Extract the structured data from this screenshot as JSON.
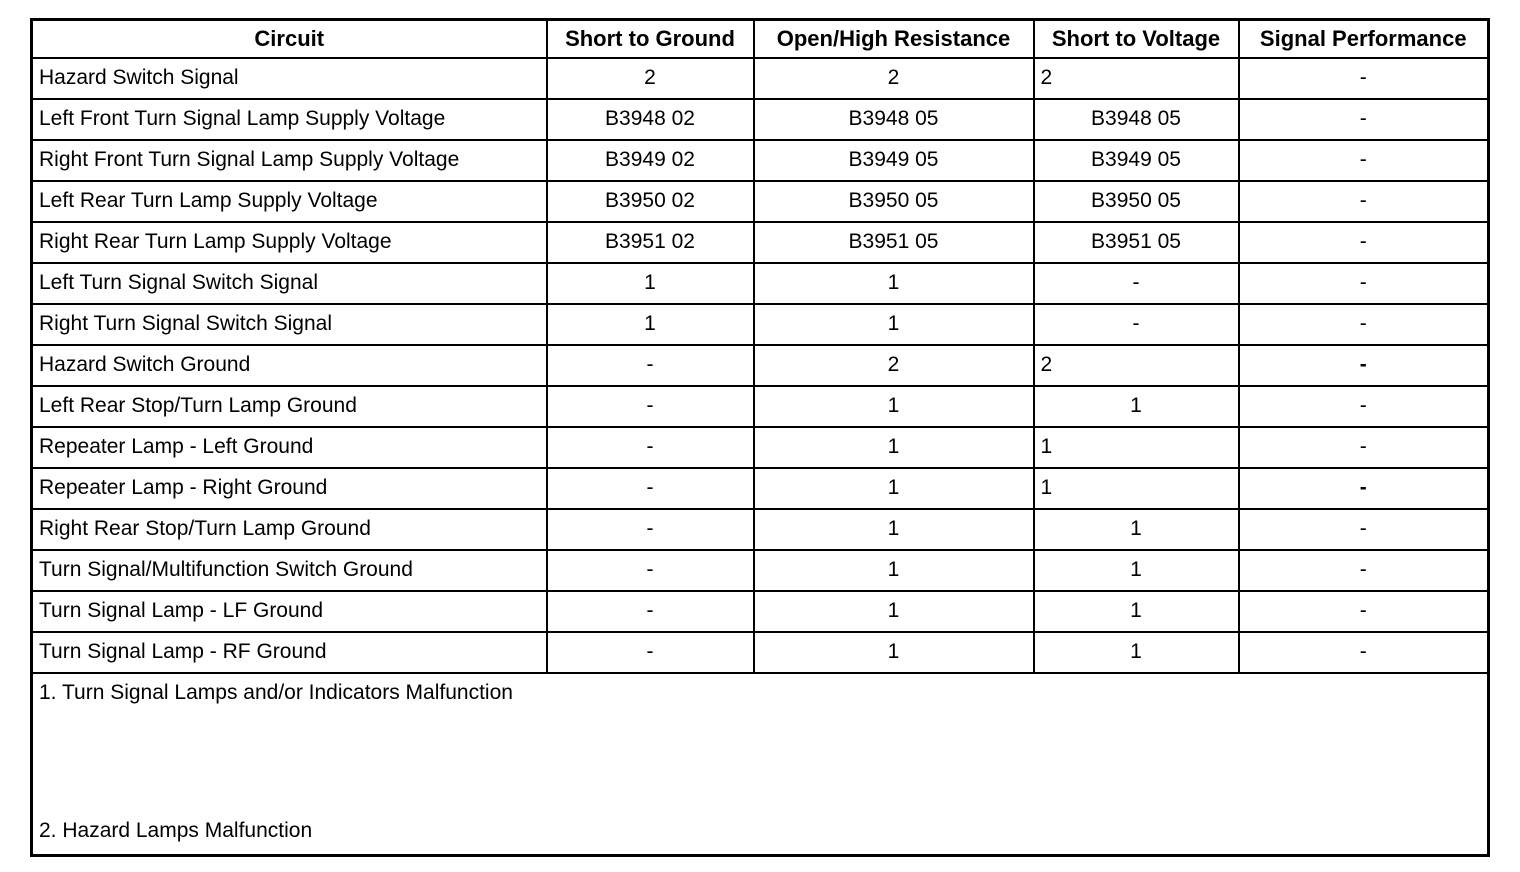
{
  "table": {
    "columns": [
      "Circuit",
      "Short to Ground",
      "Open/High Resistance",
      "Short to Voltage",
      "Signal Performance"
    ],
    "rows": [
      {
        "circuit": "Hazard Switch Signal",
        "values": [
          {
            "text": "2"
          },
          {
            "text": "2"
          },
          {
            "text": "2",
            "align": "left"
          },
          {
            "text": "-"
          }
        ]
      },
      {
        "circuit": "Left Front Turn Signal Lamp Supply Voltage",
        "values": [
          {
            "text": "B3948 02"
          },
          {
            "text": "B3948 05"
          },
          {
            "text": "B3948 05"
          },
          {
            "text": "-"
          }
        ]
      },
      {
        "circuit": "Right Front Turn Signal Lamp Supply Voltage",
        "values": [
          {
            "text": "B3949 02"
          },
          {
            "text": "B3949 05"
          },
          {
            "text": "B3949 05"
          },
          {
            "text": "-"
          }
        ]
      },
      {
        "circuit": "Left Rear Turn Lamp Supply Voltage",
        "values": [
          {
            "text": "B3950 02"
          },
          {
            "text": "B3950 05"
          },
          {
            "text": "B3950 05"
          },
          {
            "text": "-"
          }
        ]
      },
      {
        "circuit": "Right Rear Turn Lamp Supply Voltage",
        "values": [
          {
            "text": "B3951 02"
          },
          {
            "text": "B3951 05"
          },
          {
            "text": "B3951 05"
          },
          {
            "text": "-"
          }
        ]
      },
      {
        "circuit": "Left Turn Signal Switch Signal",
        "values": [
          {
            "text": "1"
          },
          {
            "text": "1"
          },
          {
            "text": "-"
          },
          {
            "text": "-"
          }
        ]
      },
      {
        "circuit": "Right Turn Signal Switch Signal",
        "values": [
          {
            "text": "1"
          },
          {
            "text": "1"
          },
          {
            "text": "-"
          },
          {
            "text": "-"
          }
        ]
      },
      {
        "circuit": "Hazard Switch Ground",
        "values": [
          {
            "text": "-"
          },
          {
            "text": "2"
          },
          {
            "text": "2",
            "align": "left"
          },
          {
            "text": "-",
            "bold": true
          }
        ]
      },
      {
        "circuit": "Left Rear Stop/Turn Lamp Ground",
        "values": [
          {
            "text": "-"
          },
          {
            "text": "1"
          },
          {
            "text": "1"
          },
          {
            "text": "-"
          }
        ]
      },
      {
        "circuit": "Repeater Lamp - Left Ground",
        "values": [
          {
            "text": "-"
          },
          {
            "text": "1"
          },
          {
            "text": "1",
            "align": "left"
          },
          {
            "text": "-"
          }
        ]
      },
      {
        "circuit": "Repeater Lamp - Right Ground",
        "values": [
          {
            "text": "-"
          },
          {
            "text": "1"
          },
          {
            "text": "1",
            "align": "left"
          },
          {
            "text": "-",
            "bold": true
          }
        ]
      },
      {
        "circuit": "Right Rear Stop/Turn Lamp Ground",
        "values": [
          {
            "text": "-"
          },
          {
            "text": "1"
          },
          {
            "text": "1"
          },
          {
            "text": "-"
          }
        ]
      },
      {
        "circuit": "Turn Signal/Multifunction Switch Ground",
        "values": [
          {
            "text": "-"
          },
          {
            "text": "1"
          },
          {
            "text": "1"
          },
          {
            "text": "-"
          }
        ]
      },
      {
        "circuit": "Turn Signal Lamp - LF Ground",
        "values": [
          {
            "text": "-"
          },
          {
            "text": "1"
          },
          {
            "text": "1"
          },
          {
            "text": "-"
          }
        ]
      },
      {
        "circuit": "Turn Signal Lamp - RF Ground",
        "values": [
          {
            "text": "-"
          },
          {
            "text": "1"
          },
          {
            "text": "1"
          },
          {
            "text": "-"
          }
        ]
      }
    ],
    "notes": [
      "1. Turn Signal Lamps and/or Indicators Malfunction",
      "2. Hazard Lamps Malfunction"
    ]
  }
}
